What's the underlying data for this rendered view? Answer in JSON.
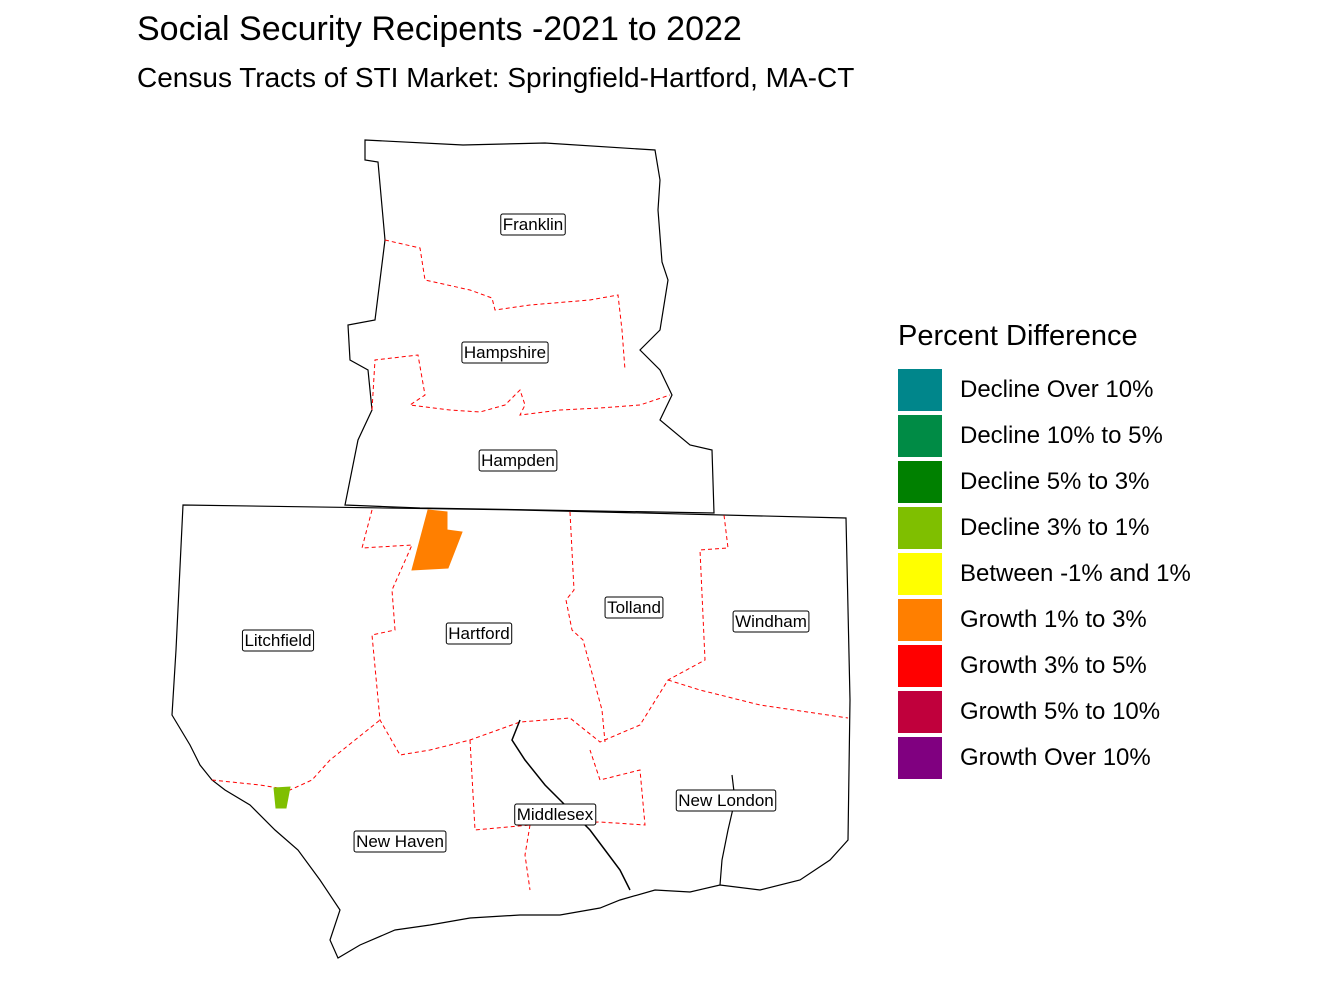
{
  "title": "Social Security Recipents -2021 to 2022",
  "subtitle": "Census Tracts of STI Market: Springfield-Hartford, MA-CT",
  "legend": {
    "title": "Percent Difference",
    "items": [
      {
        "label": "Decline Over 10%",
        "color": "#00868B"
      },
      {
        "label": "Decline 10% to 5%",
        "color": "#008B45"
      },
      {
        "label": "Decline 5% to 3%",
        "color": "#008000"
      },
      {
        "label": "Decline 3% to 1%",
        "color": "#7FBF00"
      },
      {
        "label": "Between -1% and 1%",
        "color": "#FFFF00"
      },
      {
        "label": "Growth 1% to 3%",
        "color": "#FF7F00"
      },
      {
        "label": "Growth 3% to 5%",
        "color": "#FF0000"
      },
      {
        "label": "Growth 5% to 10%",
        "color": "#C0003C"
      },
      {
        "label": "Growth Over 10%",
        "color": "#800080"
      }
    ]
  },
  "counties": [
    {
      "id": "franklin",
      "label": "Franklin"
    },
    {
      "id": "hampshire",
      "label": "Hampshire"
    },
    {
      "id": "hampden",
      "label": "Hampden"
    },
    {
      "id": "litchfield",
      "label": "Litchfield"
    },
    {
      "id": "hartford",
      "label": "Hartford"
    },
    {
      "id": "tolland",
      "label": "Tolland"
    },
    {
      "id": "windham",
      "label": "Windham"
    },
    {
      "id": "middlesex",
      "label": "Middlesex"
    },
    {
      "id": "new-london",
      "label": "New London"
    },
    {
      "id": "new-haven",
      "label": "New Haven"
    }
  ],
  "highlighted_tracts": [
    {
      "county": "hartford",
      "category": "Growth 1% to 3%",
      "color": "#FF7F00"
    },
    {
      "county": "new-haven",
      "category": "Decline 3% to 1%",
      "color": "#7FBF00"
    }
  ],
  "colors": {
    "state_border": "#000000",
    "county_border": "#FF0000"
  }
}
